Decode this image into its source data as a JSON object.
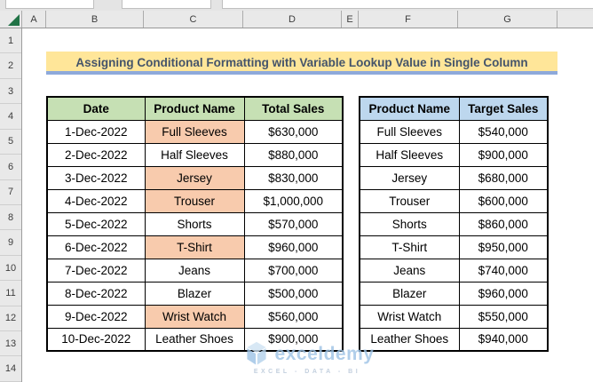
{
  "title": "Assigning Conditional Formatting with Variable Lookup Value in Single Column",
  "columns": [
    "A",
    "B",
    "C",
    "D",
    "E",
    "F",
    "G"
  ],
  "rows": [
    "1",
    "2",
    "3",
    "4",
    "5",
    "6",
    "7",
    "8",
    "9",
    "10",
    "11",
    "12",
    "13",
    "14"
  ],
  "sales_table": {
    "headers": [
      "Date",
      "Product Name",
      "Total Sales"
    ],
    "rows": [
      [
        "1-Dec-2022",
        "Full Sleeves",
        "$630,000"
      ],
      [
        "2-Dec-2022",
        "Half Sleeves",
        "$880,000"
      ],
      [
        "3-Dec-2022",
        "Jersey",
        "$830,000"
      ],
      [
        "4-Dec-2022",
        "Trouser",
        "$1,000,000"
      ],
      [
        "5-Dec-2022",
        "Shorts",
        "$570,000"
      ],
      [
        "6-Dec-2022",
        "T-Shirt",
        "$960,000"
      ],
      [
        "7-Dec-2022",
        "Jeans",
        "$700,000"
      ],
      [
        "8-Dec-2022",
        "Blazer",
        "$500,000"
      ],
      [
        "9-Dec-2022",
        "Wrist Watch",
        "$560,000"
      ],
      [
        "10-Dec-2022",
        "Leather Shoes",
        "$900,000"
      ]
    ],
    "highlighted_products": [
      "Full Sleeves",
      "Jersey",
      "Trouser",
      "T-Shirt",
      "Wrist Watch"
    ]
  },
  "target_table": {
    "headers": [
      "Product Name",
      "Target Sales"
    ],
    "rows": [
      [
        "Full Sleeves",
        "$540,000"
      ],
      [
        "Half Sleeves",
        "$900,000"
      ],
      [
        "Jersey",
        "$680,000"
      ],
      [
        "Trouser",
        "$600,000"
      ],
      [
        "Shorts",
        "$860,000"
      ],
      [
        "T-Shirt",
        "$950,000"
      ],
      [
        "Jeans",
        "$740,000"
      ],
      [
        "Blazer",
        "$960,000"
      ],
      [
        "Wrist Watch",
        "$550,000"
      ],
      [
        "Leather Shoes",
        "$940,000"
      ]
    ]
  },
  "watermark": {
    "brand": "exceldemy",
    "tagline": "EXCEL - DATA - BI"
  },
  "colors": {
    "sales_header_bg": "#C6E0B4",
    "target_header_bg": "#BDD7EE",
    "highlight_bg": "#F8CBAD",
    "banner_bg": "#FFE699",
    "banner_text": "#44546A",
    "banner_underline": "#8EA9DB",
    "select_all_green": "#217346",
    "watermark_blue": "#9DC3E6"
  }
}
